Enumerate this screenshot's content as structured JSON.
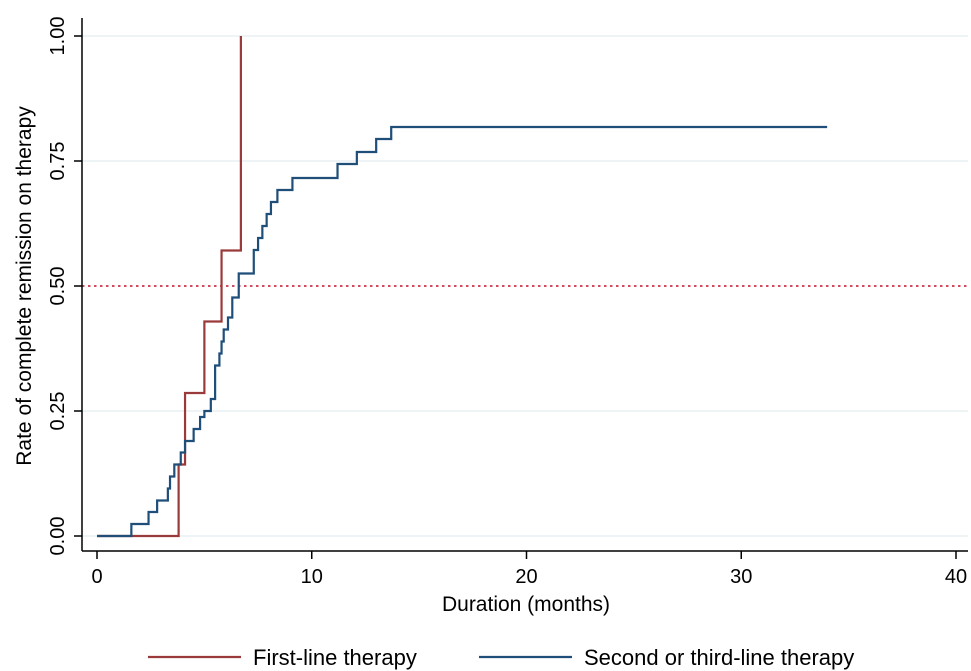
{
  "chart_data": {
    "type": "line",
    "step": true,
    "xlabel": "Duration (months)",
    "ylabel": "Rate of complete remission on therapy",
    "xlim": [
      0,
      40
    ],
    "ylim": [
      0,
      1
    ],
    "x_ticks": [
      0,
      10,
      20,
      30,
      40
    ],
    "x_tick_labels": [
      "0",
      "10",
      "20",
      "30",
      "40"
    ],
    "y_ticks": [
      0,
      0.25,
      0.5,
      0.75,
      1
    ],
    "y_tick_labels": [
      "0.00",
      "0.25",
      "0.50",
      "0.75",
      "1.00"
    ],
    "grid": "horizontal",
    "reference_line": {
      "y": 0.5,
      "style": "dotted",
      "color": "#c0102a"
    },
    "legend_position": "bottom",
    "series": [
      {
        "name": "First-line therapy",
        "color": "#9b3a3a",
        "x": [
          0,
          3.8,
          3.8,
          4.1,
          5.0,
          5.8,
          6.7,
          6.7
        ],
        "y": [
          0,
          0,
          0.143,
          0.286,
          0.429,
          0.571,
          0.714,
          1.0
        ]
      },
      {
        "name": "Second or third-line therapy",
        "color": "#1f4e79",
        "x": [
          0,
          1.6,
          2.4,
          2.8,
          3.3,
          3.4,
          3.6,
          3.9,
          4.1,
          4.5,
          4.8,
          5.0,
          5.3,
          5.5,
          5.7,
          5.8,
          5.9,
          6.1,
          6.3,
          6.6,
          7.3,
          7.5,
          7.7,
          7.9,
          8.1,
          8.4,
          9.1,
          11.2,
          12.1,
          13.0,
          13.7,
          34.0
        ],
        "y": [
          0,
          0.024,
          0.048,
          0.071,
          0.095,
          0.119,
          0.143,
          0.167,
          0.19,
          0.214,
          0.238,
          0.25,
          0.274,
          0.341,
          0.365,
          0.389,
          0.413,
          0.437,
          0.477,
          0.525,
          0.572,
          0.596,
          0.62,
          0.644,
          0.668,
          0.692,
          0.716,
          0.744,
          0.768,
          0.794,
          0.818,
          0.818
        ]
      }
    ]
  }
}
